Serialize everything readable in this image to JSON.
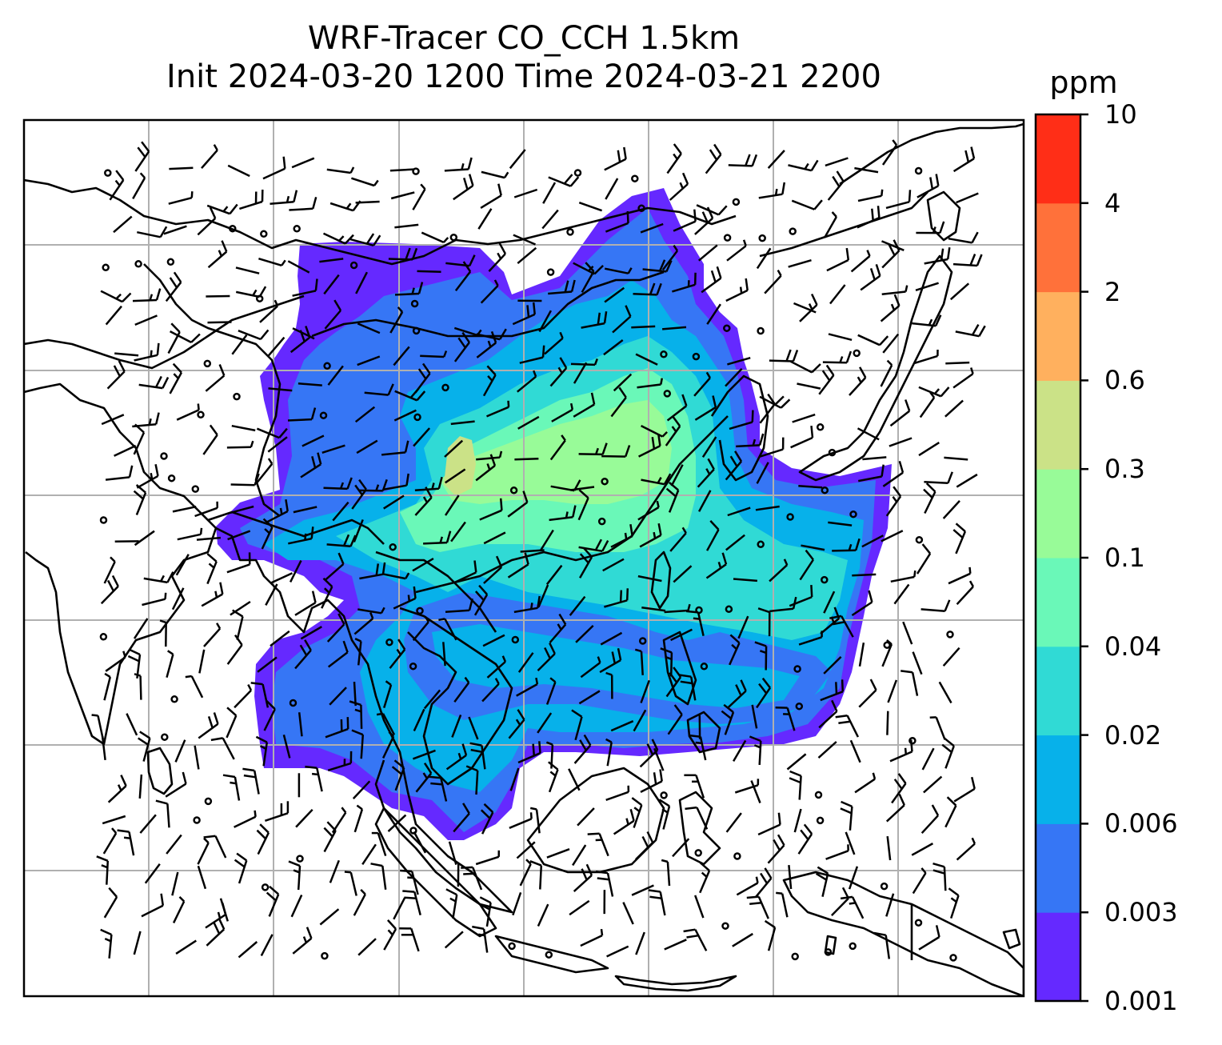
{
  "title": {
    "line1": "WRF-Tracer CO_CCH 1.5km",
    "line2": "Init 2024-03-20 1200 Time 2024-03-21 2200"
  },
  "colorbar": {
    "units": "ppm",
    "levels": [
      "0.001",
      "0.003",
      "0.006",
      "0.02",
      "0.04",
      "0.1",
      "0.3",
      "0.6",
      "2",
      "4",
      "10"
    ],
    "colors": [
      "#6529ff",
      "#3676f5",
      "#07b1ea",
      "#30dad5",
      "#6af8b8",
      "#98fb98",
      "#cbe287",
      "#ffb05e",
      "#ff713a",
      "#ff2e17"
    ]
  },
  "map": {
    "coastline_color": "#000000",
    "gridline_color": "#b0b0b0",
    "wind_barb_color": "#000000"
  }
}
